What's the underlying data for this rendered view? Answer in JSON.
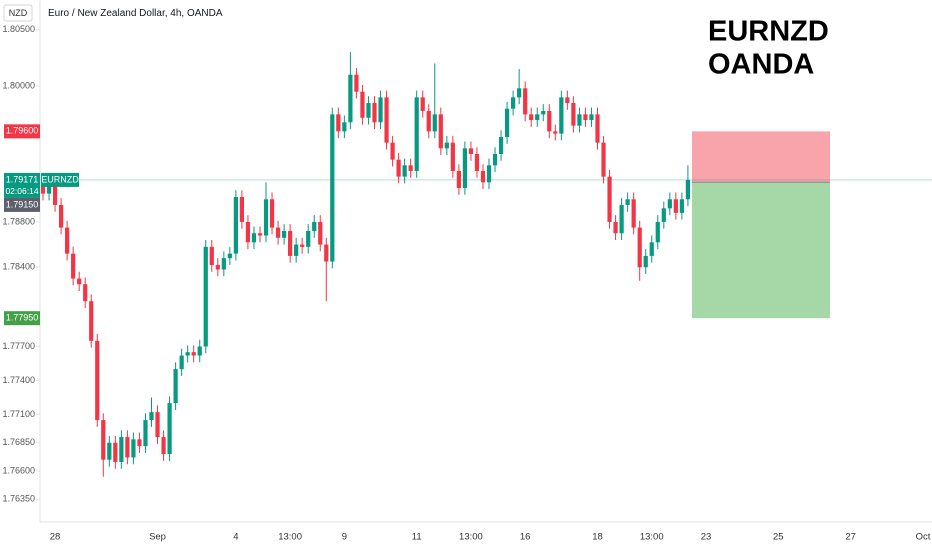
{
  "chart_data": {
    "type": "candlestick",
    "title": "Euro / New Zealand Dollar, 4h, OANDA",
    "currency": "NZD",
    "watermark": [
      "EURNZD",
      "OANDA"
    ],
    "up_color": "#089981",
    "down_color": "#f23645",
    "ylim": [
      1.7615,
      1.8076
    ],
    "yticks": [
      {
        "value": 1.805,
        "label": "1.80500"
      },
      {
        "value": 1.8,
        "label": "1.80000"
      },
      {
        "value": 1.788,
        "label": "1.78800"
      },
      {
        "value": 1.784,
        "label": "1.78400"
      },
      {
        "value": 1.777,
        "label": "1.77700"
      },
      {
        "value": 1.774,
        "label": "1.77400"
      },
      {
        "value": 1.771,
        "label": "1.77100"
      },
      {
        "value": 1.7685,
        "label": "1.76850"
      },
      {
        "value": 1.766,
        "label": "1.76600"
      },
      {
        "value": 1.7635,
        "label": "1.76350"
      }
    ],
    "grid": false,
    "last_price": {
      "value": 1.79171,
      "symbol": "EURNZD",
      "countdown": "02:06:14"
    },
    "position": {
      "stop": {
        "value": 1.796,
        "label": "1.79600"
      },
      "entry": {
        "value": 1.7915,
        "label": "1.79150"
      },
      "target": {
        "value": 1.7795,
        "label": "1.77950"
      }
    },
    "categories": [
      null,
      null,
      "28",
      null,
      null,
      null,
      null,
      null,
      null,
      null,
      null,
      null,
      null,
      null,
      null,
      null,
      null,
      null,
      null,
      "Sep",
      null,
      null,
      null,
      null,
      null,
      null,
      null,
      null,
      null,
      null,
      null,
      null,
      "4",
      null,
      null,
      null,
      null,
      null,
      null,
      null,
      null,
      "13:00",
      null,
      null,
      null,
      null,
      null,
      null,
      null,
      null,
      "9",
      null,
      null,
      null,
      null,
      null,
      null,
      null,
      null,
      null,
      null,
      null,
      "11",
      null,
      null,
      null,
      null,
      null,
      null,
      null,
      null,
      "13:00",
      null,
      null,
      null,
      null,
      null,
      null,
      null,
      null,
      "16",
      null,
      null,
      null,
      null,
      null,
      null,
      null,
      null,
      null,
      null,
      null,
      "18",
      null,
      null,
      null,
      null,
      null,
      null,
      null,
      null,
      "13:00",
      null,
      null,
      null,
      null,
      null,
      null,
      null,
      null,
      "23",
      null,
      null,
      null,
      null,
      null,
      null,
      null,
      null,
      null,
      null,
      null,
      "25",
      null,
      null,
      null,
      null,
      null,
      null,
      null,
      null,
      null,
      null,
      null,
      "27",
      null,
      null,
      null,
      null,
      null,
      null,
      null,
      null,
      null,
      null,
      null,
      "Oct",
      null
    ],
    "open": [
      1.7915,
      1.7905,
      1.7912,
      1.7895,
      1.7875,
      1.7852,
      1.783,
      1.7825,
      1.781,
      1.7775,
      1.7705,
      1.767,
      1.7685,
      1.7668,
      1.769,
      1.7672,
      1.7688,
      1.7682,
      1.7705,
      1.7712,
      1.769,
      1.7675,
      1.772,
      1.775,
      1.7762,
      1.7765,
      1.7762,
      1.777,
      1.7858,
      1.7842,
      1.7838,
      1.7848,
      1.7852,
      1.7902,
      1.788,
      1.7862,
      1.787,
      1.7868,
      1.79,
      1.7875,
      1.7866,
      1.7872,
      1.785,
      1.786,
      1.7858,
      1.7872,
      1.788,
      1.786,
      1.7845,
      1.7975,
      1.796,
      1.7968,
      1.801,
      1.7995,
      1.7972,
      1.7985,
      1.7968,
      1.799,
      1.795,
      1.7935,
      1.792,
      1.793,
      1.7925,
      1.799,
      1.7978,
      1.796,
      1.7975,
      1.7945,
      1.795,
      1.7925,
      1.791,
      1.7945,
      1.794,
      1.7925,
      1.7915,
      1.793,
      1.794,
      1.7955,
      1.798,
      1.799,
      1.7998,
      1.7975,
      1.797,
      1.7975,
      1.7978,
      1.796,
      1.7958,
      1.799,
      1.7985,
      1.7965,
      1.7975,
      1.797,
      1.7975,
      1.795,
      1.792,
      1.788,
      1.787,
      1.7895,
      1.79,
      1.7875,
      1.784,
      1.785,
      1.7862,
      1.788,
      1.7892,
      1.79,
      1.7888,
      1.79,
      null,
      null,
      null,
      null,
      null,
      null,
      null,
      null,
      null,
      null,
      null,
      null,
      null,
      null,
      null,
      null,
      null,
      null,
      null,
      null,
      null,
      null,
      null,
      null,
      null,
      null,
      null,
      null,
      null,
      null,
      null,
      null,
      null,
      null,
      null,
      null,
      null,
      null,
      null,
      null
    ],
    "high": [
      1.7921,
      1.7918,
      1.7918,
      1.7901,
      1.7881,
      1.7858,
      1.7836,
      1.7831,
      1.7816,
      1.7781,
      1.7711,
      1.7691,
      1.7691,
      1.7696,
      1.7696,
      1.7694,
      1.7694,
      1.7711,
      1.7725,
      1.7718,
      1.7696,
      1.7726,
      1.7756,
      1.7768,
      1.7771,
      1.7771,
      1.7776,
      1.7864,
      1.7864,
      1.7848,
      1.7854,
      1.7858,
      1.7908,
      1.7908,
      1.7886,
      1.7876,
      1.7876,
      1.7915,
      1.7906,
      1.7881,
      1.7878,
      1.7878,
      1.7866,
      1.7866,
      1.7878,
      1.7886,
      1.7886,
      1.7866,
      1.7981,
      1.7981,
      1.7974,
      1.803,
      1.8016,
      1.8001,
      1.7991,
      1.7991,
      1.7996,
      1.7996,
      1.7956,
      1.7941,
      1.7936,
      1.7936,
      1.7996,
      1.7996,
      1.7984,
      1.802,
      1.7981,
      1.7956,
      1.7956,
      1.7931,
      1.7951,
      1.7951,
      1.7946,
      1.7931,
      1.7936,
      1.7946,
      1.7961,
      1.7986,
      1.7996,
      1.8015,
      1.8004,
      1.7981,
      1.7981,
      1.7984,
      1.7984,
      1.7966,
      1.7996,
      1.7996,
      1.7991,
      1.7981,
      1.7981,
      1.7981,
      1.7981,
      1.7956,
      1.7926,
      1.7886,
      1.7901,
      1.7906,
      1.7906,
      1.7881,
      1.7856,
      1.7868,
      1.7886,
      1.7898,
      1.7906,
      1.7906,
      1.7906,
      1.793,
      null,
      null,
      null,
      null,
      null,
      null,
      null,
      null,
      null,
      null,
      null,
      null,
      null,
      null,
      null,
      null,
      null,
      null,
      null,
      null,
      null,
      null,
      null,
      null,
      null,
      null,
      null,
      null,
      null,
      null,
      null,
      null,
      null,
      null,
      null,
      null,
      null,
      null,
      null,
      null
    ],
    "low": [
      1.7899,
      1.7899,
      1.7889,
      1.7869,
      1.7846,
      1.7824,
      1.7819,
      1.7804,
      1.7769,
      1.7699,
      1.7655,
      1.7664,
      1.7662,
      1.7662,
      1.7666,
      1.7666,
      1.7676,
      1.7676,
      1.7699,
      1.7684,
      1.7669,
      1.7669,
      1.7714,
      1.7744,
      1.7756,
      1.7756,
      1.7756,
      1.7764,
      1.7836,
      1.7832,
      1.7832,
      1.7842,
      1.7846,
      1.7874,
      1.7856,
      1.7856,
      1.7862,
      1.7862,
      1.7869,
      1.786,
      1.786,
      1.7844,
      1.7844,
      1.7852,
      1.7852,
      1.7866,
      1.7854,
      1.781,
      1.7839,
      1.7954,
      1.7954,
      1.7962,
      1.7989,
      1.7966,
      1.7966,
      1.7962,
      1.7962,
      1.7944,
      1.7929,
      1.7914,
      1.7914,
      1.7919,
      1.7919,
      1.7972,
      1.7954,
      1.7954,
      1.7939,
      1.7939,
      1.7919,
      1.7904,
      1.7904,
      1.7934,
      1.7919,
      1.7909,
      1.7909,
      1.7924,
      1.7934,
      1.7949,
      1.7974,
      1.7984,
      1.7969,
      1.7964,
      1.7964,
      1.7969,
      1.7954,
      1.7952,
      1.7952,
      1.7979,
      1.7959,
      1.7959,
      1.7964,
      1.7964,
      1.7944,
      1.7914,
      1.7874,
      1.7864,
      1.7864,
      1.7889,
      1.7869,
      1.7828,
      1.7834,
      1.7844,
      1.7856,
      1.7874,
      1.7886,
      1.7882,
      1.7882,
      1.7894,
      null,
      null,
      null,
      null,
      null,
      null,
      null,
      null,
      null,
      null,
      null,
      null,
      null,
      null,
      null,
      null,
      null,
      null,
      null,
      null,
      null,
      null,
      null,
      null,
      null,
      null,
      null,
      null,
      null,
      null,
      null,
      null,
      null,
      null,
      null,
      null,
      null,
      null,
      null,
      null
    ],
    "close": [
      1.7905,
      1.7912,
      1.7895,
      1.7875,
      1.7852,
      1.783,
      1.7825,
      1.781,
      1.7775,
      1.7705,
      1.767,
      1.7685,
      1.7668,
      1.769,
      1.7672,
      1.7688,
      1.7682,
      1.7705,
      1.7712,
      1.769,
      1.7675,
      1.772,
      1.775,
      1.7762,
      1.7765,
      1.7762,
      1.777,
      1.7858,
      1.7842,
      1.7838,
      1.7848,
      1.7852,
      1.7902,
      1.788,
      1.7862,
      1.787,
      1.7868,
      1.79,
      1.7875,
      1.7866,
      1.7872,
      1.785,
      1.786,
      1.7858,
      1.7872,
      1.788,
      1.786,
      1.7845,
      1.7975,
      1.796,
      1.7968,
      1.801,
      1.7995,
      1.7972,
      1.7985,
      1.7968,
      1.799,
      1.795,
      1.7935,
      1.792,
      1.793,
      1.7925,
      1.799,
      1.7978,
      1.796,
      1.7975,
      1.7945,
      1.795,
      1.7925,
      1.791,
      1.7945,
      1.794,
      1.7925,
      1.7915,
      1.793,
      1.794,
      1.7955,
      1.798,
      1.799,
      1.7998,
      1.7975,
      1.797,
      1.7975,
      1.7978,
      1.796,
      1.7958,
      1.799,
      1.7985,
      1.7965,
      1.7975,
      1.797,
      1.7975,
      1.795,
      1.792,
      1.788,
      1.787,
      1.7895,
      1.79,
      1.7875,
      1.784,
      1.785,
      1.7862,
      1.788,
      1.7892,
      1.79,
      1.7888,
      1.79,
      1.79171,
      null,
      null,
      null,
      null,
      null,
      null,
      null,
      null,
      null,
      null,
      null,
      null,
      null,
      null,
      null,
      null,
      null,
      null,
      null,
      null,
      null,
      null,
      null,
      null,
      null,
      null,
      null,
      null,
      null,
      null,
      null,
      null,
      null,
      null,
      null,
      null,
      null,
      null,
      null,
      null
    ]
  }
}
